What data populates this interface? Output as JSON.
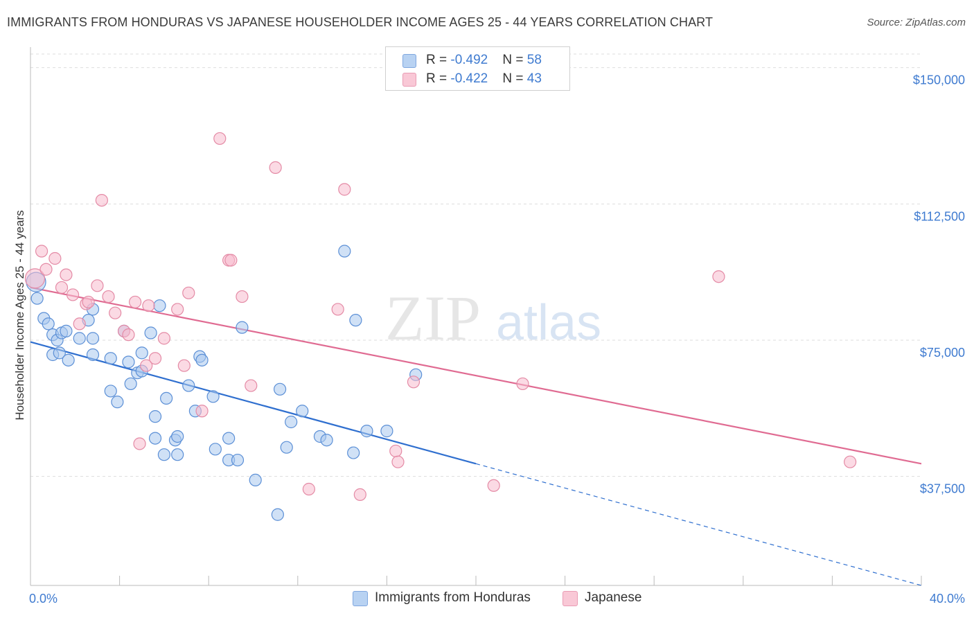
{
  "title": "IMMIGRANTS FROM HONDURAS VS JAPANESE HOUSEHOLDER INCOME AGES 25 - 44 YEARS CORRELATION CHART",
  "source": "Source: ZipAtlas.com",
  "watermark": {
    "zip": "ZIP",
    "atlas": "atlas"
  },
  "colors": {
    "blue_fill": "#a9c8ee",
    "blue_stroke": "#5b8fd6",
    "blue_line": "#2f6fcf",
    "pink_fill": "#f7bccd",
    "pink_stroke": "#e48aa5",
    "pink_line": "#e06b92",
    "axis_text": "#3f7bd0",
    "grid": "#dddddd"
  },
  "legend": {
    "series": [
      {
        "r_label": "R = ",
        "r_value": "-0.492",
        "n_label": "N = ",
        "n_value": "58"
      },
      {
        "r_label": "R = ",
        "r_value": "-0.422",
        "n_label": "N = ",
        "n_value": "43"
      }
    ]
  },
  "bottom_legend": [
    "Immigrants from Honduras",
    "Japanese"
  ],
  "chart_data": {
    "type": "scatter",
    "title": "IMMIGRANTS FROM HONDURAS VS JAPANESE HOUSEHOLDER INCOME AGES 25 - 44 YEARS CORRELATION CHART",
    "xlabel": "",
    "ylabel": "Householder Income Ages 25 - 44 years",
    "xlim": [
      0,
      40
    ],
    "ylim": [
      7500,
      153750
    ],
    "x_tick_labels": [
      "0.0%",
      "40.0%"
    ],
    "y_ticks": [
      37500,
      75000,
      112500,
      150000
    ],
    "y_tick_labels": [
      "$37,500",
      "$75,000",
      "$112,500",
      "$150,000"
    ],
    "grid": true,
    "legend_position": "top-center",
    "series": [
      {
        "name": "Immigrants from Honduras",
        "color": "#a9c8ee",
        "points": [
          [
            0.25,
            91000
          ],
          [
            0.3,
            86500
          ],
          [
            0.6,
            81000
          ],
          [
            0.8,
            79500
          ],
          [
            1.0,
            76500
          ],
          [
            1.2,
            75000
          ],
          [
            1.4,
            77000
          ],
          [
            1.6,
            77500
          ],
          [
            1.0,
            71000
          ],
          [
            1.3,
            71500
          ],
          [
            1.7,
            69500
          ],
          [
            2.2,
            75500
          ],
          [
            2.8,
            83500
          ],
          [
            2.6,
            80500
          ],
          [
            2.8,
            75500
          ],
          [
            2.8,
            71000
          ],
          [
            3.6,
            70000
          ],
          [
            3.6,
            61000
          ],
          [
            3.9,
            58000
          ],
          [
            4.2,
            77500
          ],
          [
            4.4,
            69000
          ],
          [
            4.5,
            63000
          ],
          [
            4.8,
            66000
          ],
          [
            5.0,
            66500
          ],
          [
            5.0,
            71500
          ],
          [
            5.4,
            77000
          ],
          [
            5.8,
            84500
          ],
          [
            5.6,
            54000
          ],
          [
            5.6,
            48000
          ],
          [
            6.1,
            59000
          ],
          [
            6.0,
            43500
          ],
          [
            6.5,
            47500
          ],
          [
            6.6,
            43500
          ],
          [
            6.6,
            48500
          ],
          [
            7.1,
            62500
          ],
          [
            7.6,
            70500
          ],
          [
            7.7,
            69500
          ],
          [
            7.4,
            55500
          ],
          [
            8.2,
            59500
          ],
          [
            8.3,
            45000
          ],
          [
            8.9,
            48000
          ],
          [
            8.9,
            42000
          ],
          [
            9.3,
            42000
          ],
          [
            9.5,
            78500
          ],
          [
            10.1,
            36500
          ],
          [
            11.1,
            27000
          ],
          [
            11.2,
            61500
          ],
          [
            11.5,
            45500
          ],
          [
            11.7,
            52500
          ],
          [
            12.2,
            55500
          ],
          [
            13.0,
            48500
          ],
          [
            13.3,
            47500
          ],
          [
            14.1,
            99500
          ],
          [
            14.6,
            80500
          ],
          [
            14.5,
            44000
          ],
          [
            15.1,
            50000
          ],
          [
            16.0,
            50000
          ],
          [
            17.3,
            65500
          ]
        ],
        "trend": {
          "x0": 0,
          "y0": 74500,
          "x1": 40,
          "y1": 7500,
          "solid_until_x": 20
        }
      },
      {
        "name": "Japanese",
        "color": "#f7bccd",
        "points": [
          [
            0.2,
            92000
          ],
          [
            0.5,
            99500
          ],
          [
            0.7,
            94500
          ],
          [
            1.1,
            97500
          ],
          [
            1.4,
            89500
          ],
          [
            1.6,
            93000
          ],
          [
            1.9,
            87500
          ],
          [
            2.2,
            79500
          ],
          [
            2.5,
            85000
          ],
          [
            2.6,
            85500
          ],
          [
            3.0,
            90000
          ],
          [
            3.2,
            113500
          ],
          [
            3.5,
            87000
          ],
          [
            3.8,
            82500
          ],
          [
            4.2,
            77500
          ],
          [
            4.4,
            76500
          ],
          [
            4.7,
            85500
          ],
          [
            4.9,
            46500
          ],
          [
            5.2,
            68000
          ],
          [
            5.3,
            84500
          ],
          [
            5.6,
            70000
          ],
          [
            6.0,
            75500
          ],
          [
            6.6,
            83500
          ],
          [
            6.9,
            68000
          ],
          [
            7.1,
            88000
          ],
          [
            7.7,
            55500
          ],
          [
            8.5,
            130500
          ],
          [
            8.9,
            97000
          ],
          [
            9.0,
            97000
          ],
          [
            9.5,
            87000
          ],
          [
            9.9,
            62500
          ],
          [
            11.0,
            122500
          ],
          [
            12.5,
            34000
          ],
          [
            13.8,
            83500
          ],
          [
            14.1,
            116500
          ],
          [
            14.8,
            32500
          ],
          [
            16.4,
            44500
          ],
          [
            16.5,
            41500
          ],
          [
            17.2,
            63500
          ],
          [
            20.8,
            35000
          ],
          [
            22.1,
            63000
          ],
          [
            30.9,
            92500
          ],
          [
            36.8,
            41500
          ]
        ],
        "trend": {
          "x0": 0,
          "y0": 89500,
          "x1": 40,
          "y1": 41000,
          "solid_until_x": 40
        }
      }
    ]
  }
}
